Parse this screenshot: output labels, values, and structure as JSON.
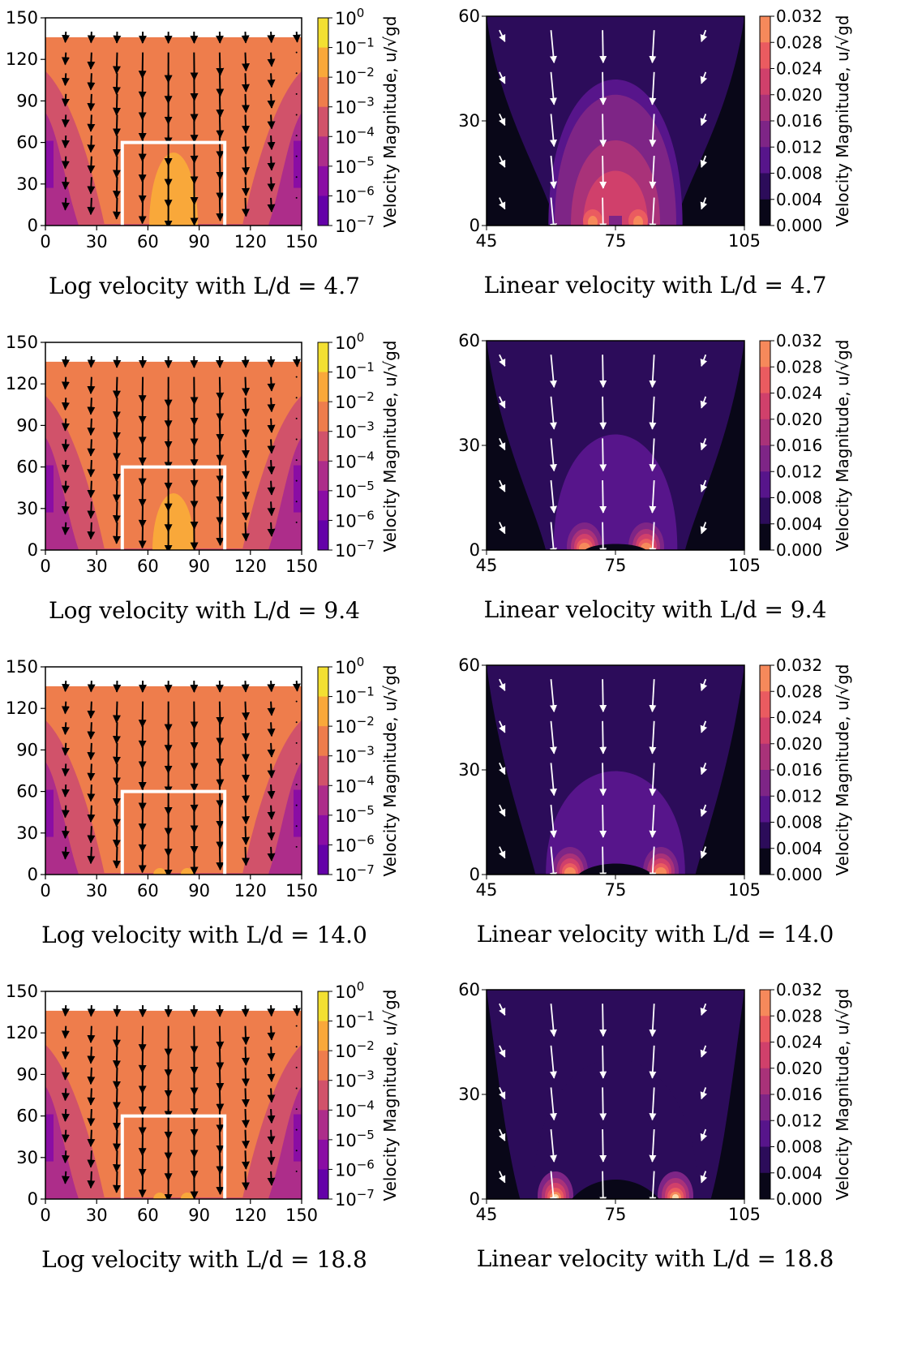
{
  "colorbar_label": "Velocity Magnitude, u/√gd",
  "log_colorbar": {
    "ticks": [
      "10^0",
      "10^-1",
      "10^-2",
      "10^-3",
      "10^-4",
      "10^-5",
      "10^-6",
      "10^-7"
    ],
    "colors": [
      "#f3e032",
      "#f9a83a",
      "#ee7d4c",
      "#d1526a",
      "#ad2d8a",
      "#8a0da4",
      "#6401a8"
    ]
  },
  "linear_colorbar": {
    "ticks": [
      "0.032",
      "0.028",
      "0.024",
      "0.020",
      "0.016",
      "0.012",
      "0.008",
      "0.004",
      "0.000"
    ],
    "colors": [
      "#f6895b",
      "#ea5b60",
      "#d0406b",
      "#a93279",
      "#7e2586",
      "#57158b",
      "#2c0c5a",
      "#090718"
    ]
  },
  "chart_data": [
    {
      "type": "heatmap",
      "scale": "log",
      "caption": "Log velocity with L/d = 4.7",
      "xlim": [
        0,
        150
      ],
      "ylim": [
        0,
        150
      ],
      "xticks": [
        "0",
        "30",
        "60",
        "90",
        "120",
        "150"
      ],
      "yticks": [
        "0",
        "30",
        "60",
        "90",
        "120",
        "150"
      ],
      "fill_level": 136,
      "outlet_box": {
        "x": [
          45,
          105
        ],
        "y": [
          0,
          60
        ]
      }
    },
    {
      "type": "heatmap",
      "scale": "linear",
      "caption": "Linear velocity with L/d = 4.7",
      "xlim": [
        45,
        105
      ],
      "ylim": [
        0,
        60
      ],
      "xticks": [
        "45",
        "75",
        "105"
      ],
      "yticks": [
        "0",
        "30",
        "60"
      ]
    },
    {
      "type": "heatmap",
      "scale": "log",
      "caption": "Log velocity with L/d = 9.4",
      "xlim": [
        0,
        150
      ],
      "ylim": [
        0,
        150
      ],
      "xticks": [
        "0",
        "30",
        "60",
        "90",
        "120",
        "150"
      ],
      "yticks": [
        "0",
        "30",
        "60",
        "90",
        "120",
        "150"
      ],
      "fill_level": 136,
      "outlet_box": {
        "x": [
          45,
          105
        ],
        "y": [
          0,
          60
        ]
      }
    },
    {
      "type": "heatmap",
      "scale": "linear",
      "caption": "Linear velocity with L/d = 9.4",
      "xlim": [
        45,
        105
      ],
      "ylim": [
        0,
        60
      ],
      "xticks": [
        "45",
        "75",
        "105"
      ],
      "yticks": [
        "0",
        "30",
        "60"
      ]
    },
    {
      "type": "heatmap",
      "scale": "log",
      "caption": "Log velocity with L/d = 14.0",
      "xlim": [
        0,
        150
      ],
      "ylim": [
        0,
        150
      ],
      "xticks": [
        "0",
        "30",
        "60",
        "90",
        "120",
        "150"
      ],
      "yticks": [
        "0",
        "30",
        "60",
        "90",
        "120",
        "150"
      ],
      "fill_level": 136,
      "outlet_box": {
        "x": [
          45,
          105
        ],
        "y": [
          0,
          60
        ]
      }
    },
    {
      "type": "heatmap",
      "scale": "linear",
      "caption": "Linear velocity with L/d = 14.0",
      "xlim": [
        45,
        105
      ],
      "ylim": [
        0,
        60
      ],
      "xticks": [
        "45",
        "75",
        "105"
      ],
      "yticks": [
        "0",
        "30",
        "60"
      ]
    },
    {
      "type": "heatmap",
      "scale": "log",
      "caption": "Log velocity with L/d = 18.8",
      "xlim": [
        0,
        150
      ],
      "ylim": [
        0,
        150
      ],
      "xticks": [
        "0",
        "30",
        "60",
        "90",
        "120",
        "150"
      ],
      "yticks": [
        "0",
        "30",
        "60",
        "90",
        "120",
        "150"
      ],
      "fill_level": 136,
      "outlet_box": {
        "x": [
          45,
          105
        ],
        "y": [
          0,
          60
        ]
      }
    },
    {
      "type": "heatmap",
      "scale": "linear",
      "caption": "Linear velocity with L/d = 18.8",
      "xlim": [
        45,
        105
      ],
      "ylim": [
        0,
        60
      ],
      "xticks": [
        "45",
        "75",
        "105"
      ],
      "yticks": [
        "0",
        "30",
        "60"
      ]
    }
  ]
}
